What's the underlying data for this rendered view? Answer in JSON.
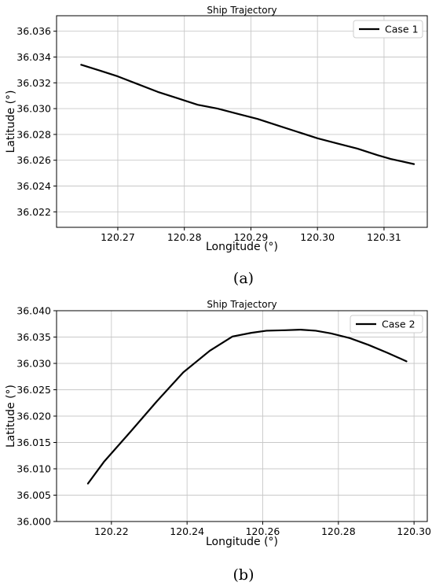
{
  "chart_data": [
    {
      "type": "line",
      "title": "Ship Trajectory",
      "xlabel": "Longitude (°)",
      "ylabel": "Latitude (°)",
      "xlim": [
        120.2608,
        120.3165
      ],
      "ylim": [
        36.0208,
        36.0372
      ],
      "xticks": [
        120.27,
        120.28,
        120.29,
        120.3,
        120.31
      ],
      "xtick_labels": [
        "120.27",
        "120.28",
        "120.29",
        "120.30",
        "120.31"
      ],
      "yticks": [
        36.022,
        36.024,
        36.026,
        36.028,
        36.03,
        36.032,
        36.034,
        36.036
      ],
      "ytick_labels": [
        "36.022",
        "36.024",
        "36.026",
        "36.028",
        "36.030",
        "36.032",
        "36.034",
        "36.036"
      ],
      "grid": true,
      "legend_position": "top-right",
      "caption": "(a)",
      "series": [
        {
          "name": "Case 1",
          "color": "#000000",
          "x": [
            120.2645,
            120.267,
            120.27,
            120.273,
            120.276,
            120.279,
            120.282,
            120.285,
            120.288,
            120.291,
            120.294,
            120.297,
            120.3,
            120.303,
            120.306,
            120.309,
            120.311,
            120.3145
          ],
          "y": [
            36.0334,
            36.033,
            36.0325,
            36.0319,
            36.0313,
            36.0308,
            36.0303,
            36.03,
            36.0296,
            36.0292,
            36.0287,
            36.0282,
            36.0277,
            36.0273,
            36.0269,
            36.0264,
            36.0261,
            36.0257
          ]
        }
      ]
    },
    {
      "type": "line",
      "title": "Ship Trajectory",
      "xlabel": "Longitude (°)",
      "ylabel": "Latitude (°)",
      "xlim": [
        120.2055,
        120.3035
      ],
      "ylim": [
        36.0,
        36.04
      ],
      "xticks": [
        120.22,
        120.24,
        120.26,
        120.28,
        120.3
      ],
      "xtick_labels": [
        "120.22",
        "120.24",
        "120.26",
        "120.28",
        "120.30"
      ],
      "yticks": [
        36.0,
        36.005,
        36.01,
        36.015,
        36.02,
        36.025,
        36.03,
        36.035,
        36.04
      ],
      "ytick_labels": [
        "36.000",
        "36.005",
        "36.010",
        "36.015",
        "36.020",
        "36.025",
        "36.030",
        "36.035",
        "36.040"
      ],
      "grid": true,
      "legend_position": "top-right",
      "caption": "(b)",
      "series": [
        {
          "name": "Case 2",
          "color": "#000000",
          "x": [
            120.2138,
            120.218,
            120.225,
            120.232,
            120.239,
            120.246,
            120.252,
            120.257,
            120.261,
            120.266,
            120.27,
            120.274,
            120.278,
            120.283,
            120.288,
            120.293,
            120.298
          ],
          "y": [
            36.0072,
            36.0113,
            36.017,
            36.0228,
            36.0283,
            36.0324,
            36.0351,
            36.0358,
            36.0362,
            36.0363,
            36.0364,
            36.0362,
            36.0357,
            36.0348,
            36.0335,
            36.032,
            36.0304
          ]
        }
      ]
    }
  ]
}
